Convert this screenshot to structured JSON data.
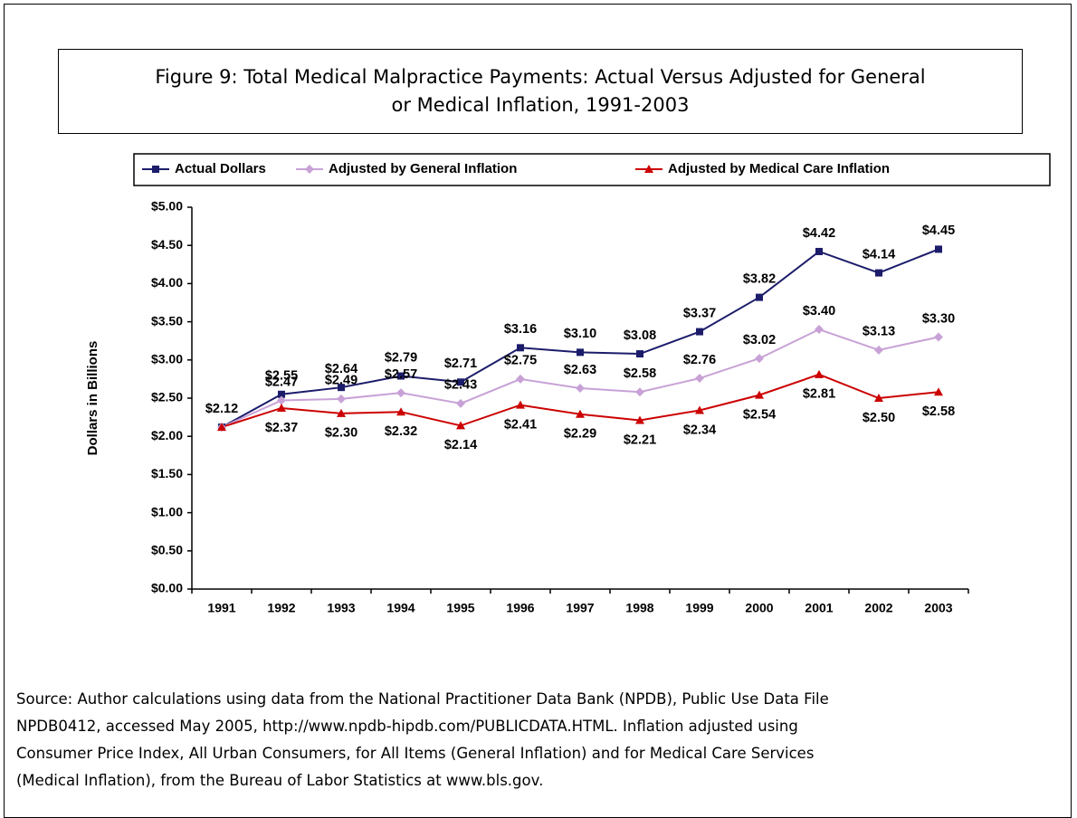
{
  "chart_data": {
    "type": "line",
    "title": "Figure 9: Total Medical Malpractice Payments: Actual Versus Adjusted for General\nor Medical Inflation, 1991-2003",
    "ylabel": "Dollars in Billions",
    "categories": [
      "1991",
      "1992",
      "1993",
      "1994",
      "1995",
      "1996",
      "1997",
      "1998",
      "1999",
      "2000",
      "2001",
      "2002",
      "2003"
    ],
    "series": [
      {
        "name": "Actual Dollars",
        "color": "#1c1c6b",
        "marker": "square",
        "values": [
          2.12,
          2.55,
          2.64,
          2.79,
          2.71,
          3.16,
          3.1,
          3.08,
          3.37,
          3.82,
          4.42,
          4.14,
          4.45
        ],
        "value_labels": [
          "$2.12",
          "$2.55",
          "$2.64",
          "$2.79",
          "$2.71",
          "$3.16",
          "$3.10",
          "$3.08",
          "$3.37",
          "$3.82",
          "$4.42",
          "$4.14",
          "$4.45"
        ]
      },
      {
        "name": "Adjusted by General Inflation",
        "color": "#c8a2d6",
        "marker": "diamond",
        "values": [
          2.12,
          2.47,
          2.49,
          2.57,
          2.43,
          2.75,
          2.63,
          2.58,
          2.76,
          3.02,
          3.4,
          3.13,
          3.3
        ],
        "value_labels": [
          null,
          "$2.47",
          "$2.49",
          "$2.57",
          "$2.43",
          "$2.75",
          "$2.63",
          "$2.58",
          "$2.76",
          "$3.02",
          "$3.40",
          "$3.13",
          "$3.30"
        ]
      },
      {
        "name": "Adjusted by Medical Care Inflation",
        "color": "#cc0000",
        "marker": "triangle",
        "values": [
          2.12,
          2.37,
          2.3,
          2.32,
          2.14,
          2.41,
          2.29,
          2.21,
          2.34,
          2.54,
          2.81,
          2.5,
          2.58
        ],
        "value_labels": [
          null,
          "$2.37",
          "$2.30",
          "$2.32",
          "$2.14",
          "$2.41",
          "$2.29",
          "$2.21",
          "$2.34",
          "$2.54",
          "$2.81",
          "$2.50",
          "$2.58"
        ]
      }
    ],
    "ylim": [
      0,
      5
    ],
    "yticks": [
      {
        "value": 0,
        "label": "$0.00"
      },
      {
        "value": 0.5,
        "label": "$0.50"
      },
      {
        "value": 1,
        "label": "$1.00"
      },
      {
        "value": 1.5,
        "label": "$1.50"
      },
      {
        "value": 2,
        "label": "$2.00"
      },
      {
        "value": 2.5,
        "label": "$2.50"
      },
      {
        "value": 3,
        "label": "$3.00"
      },
      {
        "value": 3.5,
        "label": "$3.50"
      },
      {
        "value": 4,
        "label": "$4.00"
      },
      {
        "value": 4.5,
        "label": "$4.50"
      },
      {
        "value": 5,
        "label": "$5.00"
      }
    ],
    "grid": false,
    "legend": "top",
    "source": "Source:  Author calculations using data from the National Practitioner Data Bank (NPDB), Public Use Data File\nNPDB0412, accessed May 2005, http://www.npdb-hipdb.com/PUBLICDATA.HTML.  Inflation adjusted using\nConsumer Price Index, All Urban Consumers, for All Items (General Inflation) and for Medical Care Services\n(Medical Inflation), from the Bureau of Labor Statistics at www.bls.gov."
  }
}
